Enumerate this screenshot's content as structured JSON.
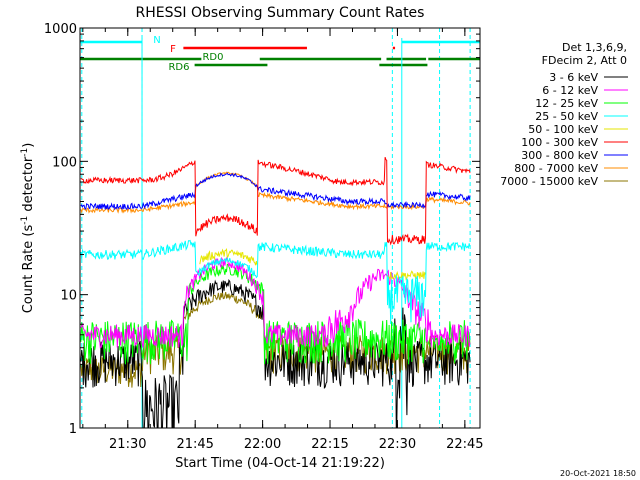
{
  "chart_data": {
    "type": "line",
    "title": "RHESSI Observing Summary Count Rates",
    "xlabel": "Start Time (04-Oct-14 21:19:22)",
    "ylabel_main": "Count Rate (s",
    "ylabel_sup1": "-1",
    "ylabel_mid": " detector",
    "ylabel_sup2": "-1",
    "ylabel_end": ")",
    "yscale": "log",
    "ylim": [
      1,
      1000
    ],
    "xlim_minutes": [
      0,
      89
    ],
    "y_ticks": [
      {
        "value": 1,
        "label": "1"
      },
      {
        "value": 10,
        "label": "10"
      },
      {
        "value": 100,
        "label": "100"
      },
      {
        "value": 1000,
        "label": "1000"
      }
    ],
    "x_ticks": [
      {
        "minute": 10.63,
        "label": "21:30"
      },
      {
        "minute": 25.63,
        "label": "21:45"
      },
      {
        "minute": 40.63,
        "label": "22:00"
      },
      {
        "minute": 55.63,
        "label": "22:15"
      },
      {
        "minute": 70.63,
        "label": "22:30"
      },
      {
        "minute": 85.63,
        "label": "22:45"
      }
    ],
    "legend_header": [
      "Det 1,3,6,9,",
      "FDecim 2, Att 0"
    ],
    "series": [
      {
        "name": "3 - 6 keV",
        "color": "#000000"
      },
      {
        "name": "6 - 12 keV",
        "color": "#ff00ff"
      },
      {
        "name": "12 - 25 keV",
        "color": "#00ff00"
      },
      {
        "name": "25 - 50 keV",
        "color": "#00ffff"
      },
      {
        "name": "50 - 100 keV",
        "color": "#e6e600"
      },
      {
        "name": "100 - 300 keV",
        "color": "#ff0000"
      },
      {
        "name": "300 - 800 keV",
        "color": "#0000ff"
      },
      {
        "name": "800 - 7000 keV",
        "color": "#ff8c00"
      },
      {
        "name": "7000 - 15000 keV",
        "color": "#8b7500"
      }
    ],
    "night_intervals_minutes": [
      [
        0,
        13.8
      ],
      [
        69.5,
        80.0
      ]
    ],
    "flags": [
      {
        "label": "N",
        "color": "#00ffff",
        "intervals_minutes": [
          [
            0,
            13.8
          ],
          [
            71.6,
            89.0
          ]
        ]
      },
      {
        "label": "F",
        "color": "#ff0000",
        "intervals_minutes": [
          [
            23.0,
            50.5
          ],
          [
            69.6,
            70.1
          ]
        ]
      },
      {
        "label": "RD0",
        "color": "#008000",
        "intervals_minutes": [
          [
            0,
            27.0
          ],
          [
            40.0,
            67.0
          ],
          [
            68.2,
            77.0
          ],
          [
            77.5,
            89.0
          ]
        ]
      },
      {
        "label": "RD6",
        "color": "#008000",
        "intervals_minutes": [
          [
            25.5,
            41.7
          ],
          [
            66.6,
            77.3
          ]
        ]
      }
    ],
    "approx_levels": {
      "100 - 300 keV": {
        "day_start": 74,
        "day_end": 98,
        "night": 29,
        "peak": 32
      },
      "300 - 800 keV": {
        "day_start": 47,
        "day_end": 63,
        "night": 46,
        "peak": 75
      },
      "800 - 7000 keV": {
        "day_start": 43,
        "day_end": 55,
        "night": 43,
        "peak": 80
      },
      "25 - 50 keV": {
        "day_start": 20,
        "day_end": 24,
        "peak": 22
      },
      "50 - 100 keV": {
        "peak": 19
      },
      "6 - 12 keV": {
        "baseline": 5,
        "peak": 14
      },
      "12 - 25 keV": {
        "baseline": 5,
        "peak": 13
      },
      "3 - 6 keV": {
        "baseline": 3,
        "peak": 10
      },
      "7000 - 15000 keV": {
        "baseline": 3,
        "peak": 9
      }
    }
  },
  "timestamp": "20-Oct-2021 18:50"
}
